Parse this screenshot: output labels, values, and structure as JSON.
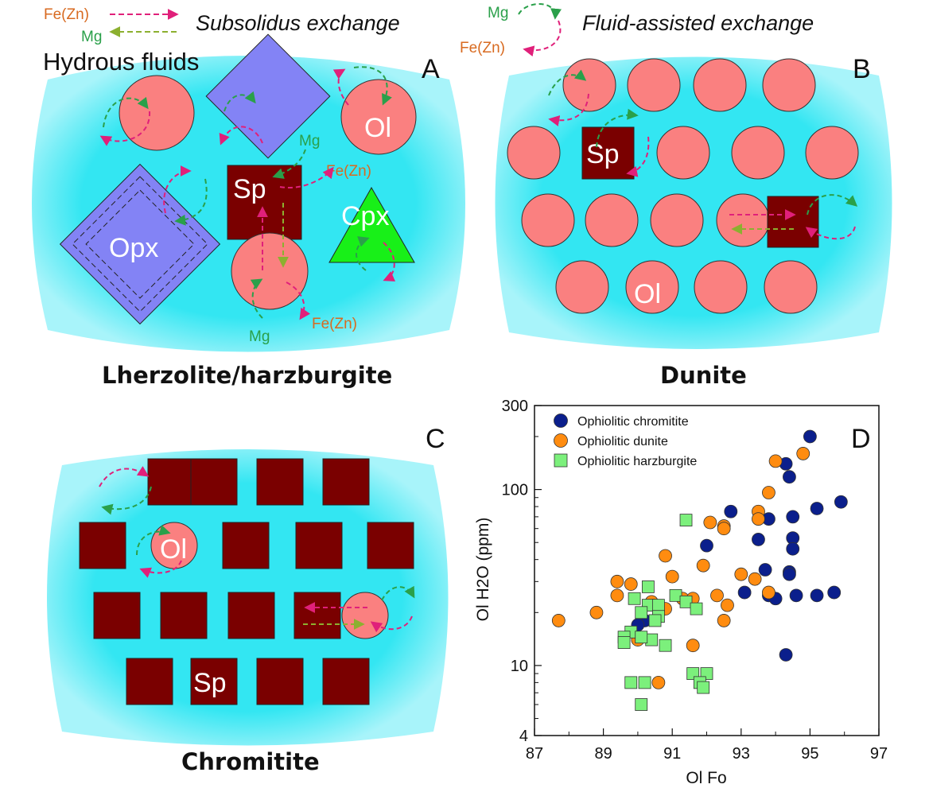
{
  "colors": {
    "fluid": "#33e6f2",
    "olivine": "#fa8080",
    "spinel": "#7a0000",
    "opx": "#8383f5",
    "cpx": "#18f018",
    "fe_arrow": "#e0207a",
    "mg_arrow": "#2aa04a",
    "mg_text": "#2aa04a",
    "fe_text": "#d86a20",
    "chromitite_marker": "#0b1f8c",
    "dunite_marker": "#ff8c10",
    "harzburgite_marker": "#7cf07c"
  },
  "legend_keys": {
    "fe_zn": "Fe(Zn)",
    "mg": "Mg",
    "subsolidus": "Subsolidus exchange",
    "fluid_assisted": "Fluid-assisted exchange"
  },
  "panels": {
    "a": {
      "letter": "A",
      "fluid_label": "Hydrous fluids",
      "opx": "Opx",
      "sp": "Sp",
      "ol": "Ol",
      "cpx": "Cpx",
      "mg_top": "Mg",
      "fe_top": "Fe(Zn)",
      "mg_bottom": "Mg",
      "fe_bottom": "Fe(Zn)",
      "caption": "Lherzolite/harzburgite"
    },
    "b": {
      "letter": "B",
      "sp": "Sp",
      "ol": "Ol",
      "caption": "Dunite"
    },
    "c": {
      "letter": "C",
      "ol": "Ol",
      "sp": "Sp",
      "caption": "Chromitite"
    },
    "d": {
      "letter": "D"
    }
  },
  "chart_data": {
    "type": "scatter",
    "xlabel": "Ol Fo",
    "ylabel": "Ol H2O (ppm)",
    "xlim": [
      87,
      97
    ],
    "ylim": [
      4,
      300
    ],
    "yscale": "log",
    "xticks": [
      87,
      89,
      91,
      93,
      95,
      97
    ],
    "yticks": [
      4,
      10,
      100,
      300
    ],
    "legend_position": "top-left",
    "series": [
      {
        "name": "Ophiolitic chromitite",
        "marker": "circle",
        "points": [
          [
            95.0,
            200
          ],
          [
            94.3,
            140
          ],
          [
            94.4,
            118
          ],
          [
            95.9,
            85
          ],
          [
            95.2,
            78
          ],
          [
            94.5,
            70
          ],
          [
            93.8,
            68
          ],
          [
            93.5,
            52
          ],
          [
            94.5,
            53
          ],
          [
            94.5,
            46
          ],
          [
            92.0,
            48
          ],
          [
            92.7,
            75
          ],
          [
            93.7,
            35
          ],
          [
            94.4,
            34
          ],
          [
            94.4,
            33
          ],
          [
            93.1,
            26
          ],
          [
            93.8,
            25
          ],
          [
            94.6,
            25
          ],
          [
            95.2,
            25
          ],
          [
            95.7,
            26
          ],
          [
            94.0,
            24
          ],
          [
            90.2,
            18
          ],
          [
            90.0,
            17
          ],
          [
            94.3,
            11.5
          ]
        ]
      },
      {
        "name": "Ophiolitic dunite",
        "marker": "circle",
        "points": [
          [
            94.8,
            160
          ],
          [
            94.0,
            145
          ],
          [
            93.8,
            96
          ],
          [
            93.5,
            75
          ],
          [
            93.5,
            68
          ],
          [
            92.1,
            65
          ],
          [
            92.5,
            62
          ],
          [
            92.5,
            60
          ],
          [
            90.8,
            42
          ],
          [
            91.9,
            37
          ],
          [
            91.0,
            32
          ],
          [
            93.0,
            33
          ],
          [
            93.4,
            31
          ],
          [
            89.4,
            30
          ],
          [
            89.8,
            29
          ],
          [
            89.4,
            25
          ],
          [
            90.4,
            23
          ],
          [
            91.3,
            24
          ],
          [
            91.6,
            24
          ],
          [
            92.3,
            25
          ],
          [
            92.6,
            22
          ],
          [
            93.8,
            26
          ],
          [
            90.8,
            21
          ],
          [
            88.8,
            20
          ],
          [
            87.7,
            18
          ],
          [
            92.5,
            18
          ],
          [
            91.6,
            13
          ],
          [
            90.0,
            14
          ],
          [
            90.6,
            8
          ]
        ]
      },
      {
        "name": "Ophiolitic harzburgite",
        "marker": "square",
        "points": [
          [
            91.4,
            67
          ],
          [
            90.3,
            28
          ],
          [
            91.1,
            25
          ],
          [
            89.9,
            24
          ],
          [
            91.4,
            23
          ],
          [
            90.3,
            22
          ],
          [
            90.6,
            22
          ],
          [
            91.7,
            21
          ],
          [
            90.1,
            20
          ],
          [
            90.6,
            19
          ],
          [
            90.5,
            18
          ],
          [
            89.8,
            15.5
          ],
          [
            89.6,
            14.5
          ],
          [
            90.4,
            14
          ],
          [
            90.1,
            14.5
          ],
          [
            89.6,
            13.5
          ],
          [
            90.8,
            13
          ],
          [
            91.6,
            9
          ],
          [
            92.0,
            9
          ],
          [
            91.8,
            8
          ],
          [
            91.9,
            7.5
          ],
          [
            89.8,
            8
          ],
          [
            90.2,
            8
          ],
          [
            90.1,
            6
          ]
        ]
      }
    ]
  }
}
